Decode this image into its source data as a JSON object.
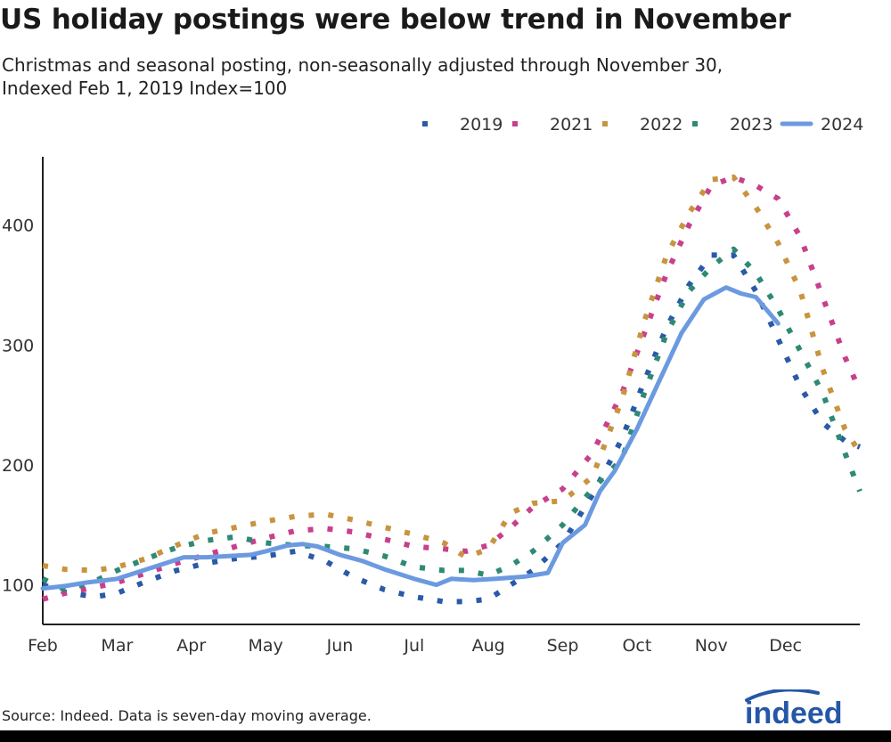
{
  "title": "US holiday postings were below trend in November",
  "subtitle_line1": "Christmas and seasonal posting, non-seasonally adjusted through November 30,",
  "subtitle_line2": "Indexed Feb 1, 2019 Index=100",
  "source": "Source: Indeed. Data is seven-day moving average.",
  "logo_text": "indeed",
  "chart_data": {
    "type": "line",
    "x_unit": "month index (0 = Feb 1, 11 = Jan 1)",
    "x_tick_labels": [
      "Feb",
      "Mar",
      "Apr",
      "May",
      "Jun",
      "Jul",
      "Aug",
      "Sep",
      "Oct",
      "Nov",
      "Dec"
    ],
    "y_ticks": [
      100,
      200,
      300,
      400
    ],
    "ylim": [
      67,
      457
    ],
    "xlim": [
      0,
      11
    ],
    "legend_position": "top-right",
    "series": [
      {
        "name": "2019",
        "color": "#2a5aa8",
        "style": "dotted",
        "x": [
          0,
          0.3,
          0.7,
          1.0,
          1.4,
          1.8,
          2.2,
          2.6,
          3.0,
          3.4,
          3.8,
          4.2,
          4.6,
          5.0,
          5.4,
          5.7,
          6.0,
          6.3,
          6.6,
          7.0,
          7.4,
          7.8,
          8.1,
          8.4,
          8.7,
          9.0,
          9.3,
          9.6,
          9.9,
          10.2,
          10.5,
          10.8,
          11.0
        ],
        "y": [
          100,
          94,
          90,
          93,
          103,
          112,
          118,
          122,
          124,
          128,
          120,
          106,
          96,
          90,
          86,
          86,
          88,
          100,
          112,
          135,
          175,
          222,
          270,
          315,
          350,
          375,
          375,
          345,
          305,
          265,
          235,
          220,
          215
        ]
      },
      {
        "name": "2021",
        "color": "#c8408c",
        "style": "dotted",
        "x": [
          0,
          0.3,
          0.7,
          1.0,
          1.4,
          1.8,
          2.2,
          2.6,
          3.0,
          3.4,
          3.8,
          4.2,
          4.6,
          5.0,
          5.4,
          5.7,
          6.0,
          6.3,
          6.6,
          7.0,
          7.4,
          7.8,
          8.1,
          8.4,
          8.7,
          9.0,
          9.3,
          9.6,
          9.9,
          10.2,
          10.5,
          10.8,
          11.0
        ],
        "y": [
          88,
          93,
          98,
          102,
          110,
          118,
          125,
          132,
          139,
          145,
          147,
          144,
          138,
          132,
          130,
          128,
          133,
          148,
          165,
          180,
          210,
          260,
          310,
          360,
          400,
          433,
          440,
          433,
          422,
          390,
          340,
          290,
          262
        ]
      },
      {
        "name": "2022",
        "color": "#c89440",
        "style": "dotted",
        "x": [
          0,
          0.3,
          0.7,
          1.0,
          1.4,
          1.8,
          2.2,
          2.6,
          3.0,
          3.4,
          3.8,
          4.2,
          4.6,
          5.0,
          5.4,
          5.7,
          6.0,
          6.3,
          6.6,
          7.0,
          7.4,
          7.8,
          8.1,
          8.4,
          8.7,
          9.0,
          9.3,
          9.6,
          9.9,
          10.2,
          10.5,
          10.8,
          11.0
        ],
        "y": [
          116,
          113,
          112,
          115,
          122,
          133,
          143,
          148,
          153,
          157,
          159,
          154,
          148,
          142,
          135,
          123,
          130,
          160,
          168,
          170,
          190,
          255,
          320,
          375,
          410,
          438,
          440,
          415,
          385,
          345,
          280,
          230,
          210
        ]
      },
      {
        "name": "2023",
        "color": "#2e8a74",
        "style": "dotted",
        "x": [
          0,
          0.3,
          0.7,
          1.0,
          1.4,
          1.8,
          2.2,
          2.6,
          3.0,
          3.4,
          3.8,
          4.2,
          4.6,
          5.0,
          5.4,
          5.7,
          6.0,
          6.3,
          6.6,
          7.0,
          7.4,
          7.8,
          8.1,
          8.4,
          8.7,
          9.0,
          9.3,
          9.6,
          9.9,
          10.2,
          10.5,
          10.8,
          11.0
        ],
        "y": [
          105,
          96,
          103,
          112,
          122,
          131,
          137,
          140,
          135,
          133,
          132,
          130,
          124,
          115,
          112,
          112,
          108,
          116,
          128,
          150,
          180,
          205,
          260,
          310,
          345,
          365,
          380,
          360,
          330,
          295,
          260,
          210,
          178
        ]
      },
      {
        "name": "2024",
        "color": "#6b9ae0",
        "style": "solid",
        "x": [
          0,
          0.3,
          0.6,
          1.0,
          1.3,
          1.6,
          1.9,
          2.2,
          2.5,
          2.8,
          3.0,
          3.3,
          3.5,
          3.7,
          4.0,
          4.3,
          4.6,
          5.0,
          5.3,
          5.5,
          5.8,
          6.1,
          6.5,
          6.8,
          7.0,
          7.3,
          7.5,
          7.7,
          8.0,
          8.3,
          8.6,
          8.9,
          9.2,
          9.4,
          9.6,
          9.9
        ],
        "y": [
          97,
          99,
          102,
          105,
          111,
          117,
          123,
          123,
          124,
          125,
          128,
          133,
          134,
          132,
          125,
          120,
          113,
          105,
          100,
          105,
          104,
          105,
          107,
          110,
          135,
          150,
          178,
          195,
          230,
          270,
          310,
          338,
          348,
          343,
          340,
          318
        ]
      }
    ]
  }
}
